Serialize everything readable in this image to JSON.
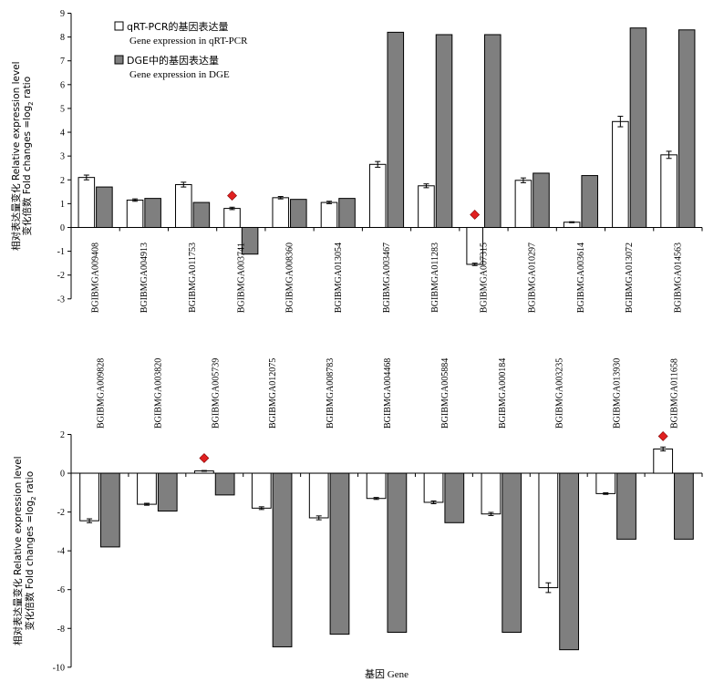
{
  "legend": {
    "items": [
      {
        "name_cn": "qRT-PCR的基因表达量",
        "name_en": "Gene expression in qRT-PCR",
        "color": "#ffffff"
      },
      {
        "name_cn": "DGE中的基因表达量",
        "name_en": "Gene expression in DGE",
        "color": "#7f7f7f"
      }
    ]
  },
  "marker_color": "#e02020",
  "chart_data": [
    {
      "type": "bar",
      "ylabel_cn": "相对表达量变化 Relative expression level",
      "ylabel_en": "变化倍数 Fold changes =log",
      "ylabel_sub": "2",
      "ylabel_tail": " ratio",
      "ylim": [
        -3,
        9
      ],
      "yticks": [
        "9",
        "8",
        "7",
        "6",
        "5",
        "4",
        "3",
        "2",
        "1",
        "0",
        "-1",
        "-2",
        "-3"
      ],
      "grid": false,
      "categories": [
        "BGIBMGA009408",
        "BGIBMGA004913",
        "BGIBMGA011753",
        "BGIBMGA003741",
        "BGIBMGA008360",
        "BGIBMGA013054",
        "BGIBMGA003467",
        "BGIBMGA011283",
        "BGIBMGA007315",
        "BGIBMGA010297",
        "BGIBMGA003614",
        "BGIBMGA013072",
        "BGIBMGA014563"
      ],
      "series": [
        {
          "name": "qRT-PCR",
          "values": [
            2.1,
            1.15,
            1.8,
            0.8,
            1.25,
            1.05,
            2.65,
            1.75,
            -1.55,
            1.98,
            0.22,
            4.45,
            3.05
          ],
          "errors": [
            0.1,
            0.05,
            0.1,
            0.05,
            0.05,
            0.05,
            0.12,
            0.08,
            0.05,
            0.1,
            0.02,
            0.22,
            0.15
          ]
        },
        {
          "name": "DGE",
          "values": [
            1.7,
            1.22,
            1.05,
            -1.12,
            1.18,
            1.22,
            8.2,
            8.1,
            8.1,
            2.28,
            2.18,
            8.38,
            8.3
          ]
        }
      ],
      "markers": [
        3,
        8
      ]
    },
    {
      "type": "bar",
      "ylabel_cn": "相对表达量变化 Relative expression level",
      "ylabel_en": "变化倍数 Fold changes =log",
      "ylabel_sub": "2",
      "ylabel_tail": " ratio",
      "xlabel": "基因 Gene",
      "ylim": [
        -10,
        2
      ],
      "yticks": [
        "2",
        "0",
        "-2",
        "-4",
        "-6",
        "-8",
        "-10"
      ],
      "grid": false,
      "categories": [
        "BGIBMGA009828",
        "BGIBMGA003820",
        "BGIBMGA005739",
        "BGIBMGA012075",
        "BGIBMGA008783",
        "BGIBMGA004468",
        "BGIBMGA005884",
        "BGIBMGA000184",
        "BGIBMGA003235",
        "BGIBMGA013930",
        "BGIBMGA011658"
      ],
      "series": [
        {
          "name": "qRT-PCR",
          "values": [
            -2.45,
            -1.6,
            0.12,
            -1.8,
            -2.3,
            -1.3,
            -1.5,
            -2.1,
            -5.9,
            -1.05,
            1.25
          ],
          "errors": [
            0.1,
            0.05,
            0.02,
            0.07,
            0.1,
            0.05,
            0.07,
            0.08,
            0.25,
            0.04,
            0.1
          ]
        },
        {
          "name": "DGE",
          "values": [
            -3.8,
            -1.95,
            -1.12,
            -8.95,
            -8.3,
            -8.2,
            -2.55,
            -8.2,
            -9.1,
            -3.4,
            -3.4
          ]
        }
      ],
      "markers": [
        2,
        10
      ]
    }
  ]
}
